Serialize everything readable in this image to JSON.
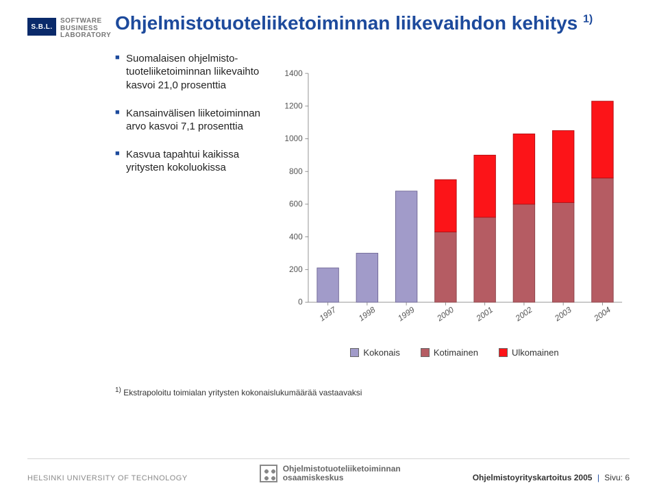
{
  "logo": {
    "badge": "S.B.L.",
    "line1": "SOFTWARE",
    "line2": "BUSINESS",
    "line3": "LABORATORY"
  },
  "title_main": "Ohjelmistotuoteliiketoiminnan liikevaihdon kehitys",
  "title_sup": "1)",
  "bullets": [
    "Suomalaisen ohjelmisto-tuoteliiketoiminnan liikevaihto kasvoi 21,0 prosenttia",
    "Kansainvälisen liiketoiminnan arvo kasvoi 7,1 prosenttia",
    "Kasvua tapahtui kaikissa yritysten kokoluokissa"
  ],
  "chart": {
    "type": "stacked-bar",
    "categories": [
      "1997",
      "1998",
      "1999",
      "2000",
      "2001",
      "2002",
      "2003",
      "2004"
    ],
    "ylim": [
      0,
      1400
    ],
    "ytick_step": 200,
    "yticks": [
      0,
      200,
      400,
      600,
      800,
      1000,
      1200,
      1400
    ],
    "plot_bg": "#ffffff",
    "axis_color": "#888888",
    "tick_font": 13,
    "bar_width": 0.55,
    "series": [
      {
        "name": "Kokonais",
        "legend": "Kokonais",
        "color": "#a19bc9",
        "border": "#6e6694",
        "values": [
          210,
          300,
          680,
          null,
          null,
          null,
          null,
          null
        ]
      },
      {
        "name": "Kotimainen",
        "legend": "Kotimainen",
        "color": "#b55c63",
        "border": "#8a444a",
        "values": [
          null,
          null,
          null,
          430,
          520,
          600,
          610,
          760
        ]
      },
      {
        "name": "Ulkomainen",
        "legend": "Ulkomainen",
        "color": "#fc1418",
        "border": "#b00e12",
        "values": [
          null,
          null,
          null,
          320,
          380,
          430,
          440,
          470
        ]
      }
    ],
    "legend_labels": [
      "Kokonais",
      "Kotimainen",
      "Ulkomainen"
    ],
    "legend_colors": [
      "#a19bc9",
      "#b55c63",
      "#fc1418"
    ]
  },
  "footnote_sup": "1)",
  "footnote": "Ekstrapoloitu toimialan yritysten kokonaislukumäärää vastaavaksi",
  "footer": {
    "left": "HELSINKI UNIVERSITY OF TECHNOLOGY",
    "center_line1": "Ohjelmistotuoteliiketoiminnan",
    "center_line2": "osaamiskeskus",
    "right_label": "Ohjelmistoyrityskartoitus 2005",
    "right_page_label": "Sivu:",
    "right_page": "6"
  }
}
